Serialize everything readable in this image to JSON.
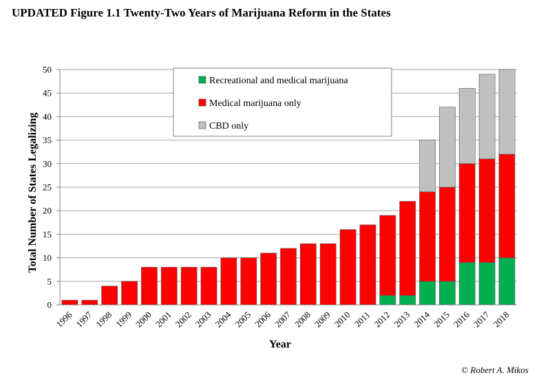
{
  "figure_title": "UPDATED Figure 1.1 Twenty-Two Years of Marijuana Reform in the States",
  "credit": "© Robert A. Mikos",
  "colors": {
    "recreational": "#00b050",
    "medical": "#ff0000",
    "cbd": "#c0c0c0",
    "grid": "#a6a6a6",
    "bar_border": "#555555"
  },
  "chart_data": {
    "type": "bar",
    "stacked": true,
    "title": "UPDATED Figure 1.1 Twenty-Two Years of Marijuana Reform in the States",
    "xlabel": "Year",
    "ylabel": "Total Number of States Legalizing",
    "ylim": [
      0,
      50
    ],
    "yticks": [
      0,
      5,
      10,
      15,
      20,
      25,
      30,
      35,
      40,
      45,
      50
    ],
    "grid": true,
    "legend_position": "top-center",
    "categories": [
      "1996",
      "1997",
      "1998",
      "1999",
      "2000",
      "2001",
      "2002",
      "2003",
      "2004",
      "2005",
      "2006",
      "2007",
      "2008",
      "2009",
      "2010",
      "2011",
      "2012",
      "2013",
      "2014",
      "2015",
      "2016",
      "2017",
      "2018"
    ],
    "series": [
      {
        "name": "Recreational and medical marijuana",
        "color_key": "recreational",
        "values": [
          0,
          0,
          0,
          0,
          0,
          0,
          0,
          0,
          0,
          0,
          0,
          0,
          0,
          0,
          0,
          0,
          2,
          2,
          5,
          5,
          9,
          9,
          10
        ]
      },
      {
        "name": "Medical marijuana only",
        "color_key": "medical",
        "values": [
          1,
          1,
          4,
          5,
          8,
          8,
          8,
          8,
          10,
          10,
          11,
          12,
          13,
          13,
          16,
          17,
          17,
          20,
          19,
          20,
          21,
          22,
          22
        ]
      },
      {
        "name": "CBD only",
        "color_key": "cbd",
        "values": [
          0,
          0,
          0,
          0,
          0,
          0,
          0,
          0,
          0,
          0,
          0,
          0,
          0,
          0,
          0,
          0,
          0,
          0,
          11,
          17,
          16,
          18,
          18
        ]
      }
    ]
  }
}
